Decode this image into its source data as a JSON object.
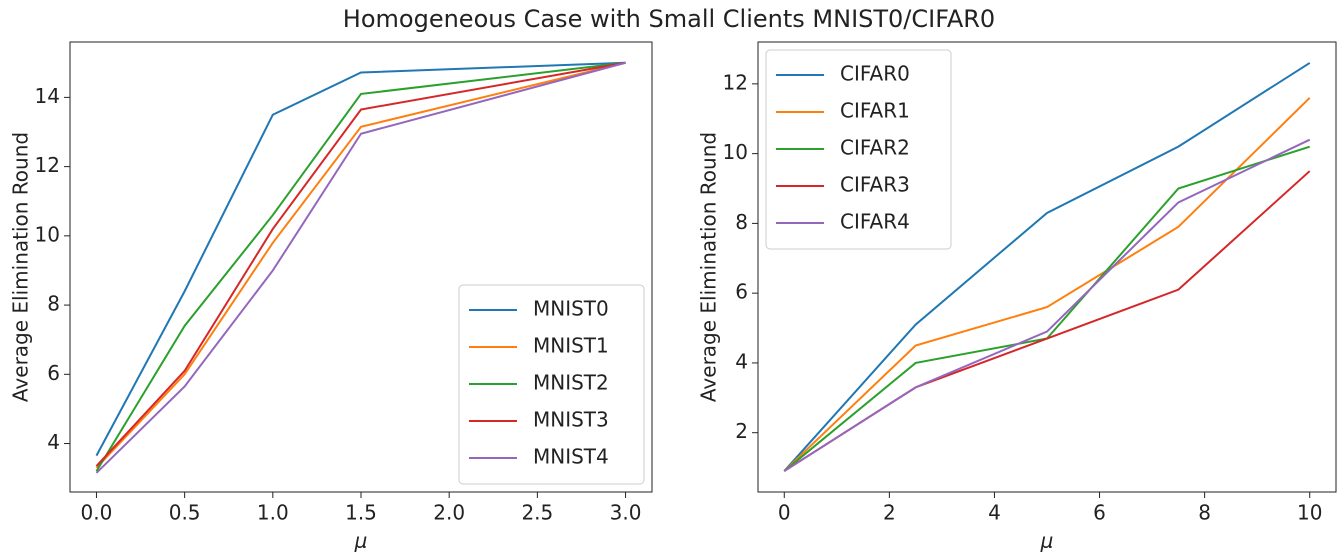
{
  "title": "Homogeneous Case with Small Clients MNIST0/CIFAR0",
  "chart_data": [
    {
      "type": "line",
      "xlabel": "μ",
      "ylabel": "Average Elimination Round",
      "x": [
        0,
        0.5,
        1.0,
        1.5,
        3.0
      ],
      "xlim": [
        -0.15,
        3.15
      ],
      "ylim": [
        2.6,
        15.6
      ],
      "xticks": [
        {
          "value": 0,
          "label": "0.0"
        },
        0.5,
        {
          "value": 1,
          "label": "1.0"
        },
        1.5,
        {
          "value": 2,
          "label": "2.0"
        },
        2.5,
        {
          "value": 3,
          "label": "3.0"
        }
      ],
      "yticks": [
        4,
        6,
        8,
        10,
        12,
        14
      ],
      "legend": "lower right",
      "series": [
        {
          "name": "MNIST0",
          "color": "#1f77b4",
          "values": [
            3.65,
            8.4,
            13.5,
            14.72,
            15
          ]
        },
        {
          "name": "MNIST1",
          "color": "#ff7f0e",
          "values": [
            3.3,
            6.0,
            9.8,
            13.15,
            15
          ]
        },
        {
          "name": "MNIST2",
          "color": "#2ca02c",
          "values": [
            3.2,
            7.4,
            10.6,
            14.1,
            15
          ]
        },
        {
          "name": "MNIST3",
          "color": "#d62728",
          "values": [
            3.35,
            6.1,
            10.2,
            13.65,
            15
          ]
        },
        {
          "name": "MNIST4",
          "color": "#9467bd",
          "values": [
            3.15,
            5.65,
            9.0,
            12.95,
            15
          ]
        }
      ]
    },
    {
      "type": "line",
      "xlabel": "μ",
      "ylabel": "Average Elimination Round",
      "x": [
        0,
        2.5,
        5,
        7.5,
        10
      ],
      "xlim": [
        -0.5,
        10.5
      ],
      "ylim": [
        0.3,
        13.2
      ],
      "xticks": [
        0,
        2,
        4,
        6,
        8,
        10
      ],
      "yticks": [
        2,
        4,
        6,
        8,
        10,
        12
      ],
      "legend": "upper left",
      "series": [
        {
          "name": "CIFAR0",
          "color": "#1f77b4",
          "values": [
            0.9,
            5.1,
            8.3,
            10.2,
            12.6
          ]
        },
        {
          "name": "CIFAR1",
          "color": "#ff7f0e",
          "values": [
            0.9,
            4.5,
            5.6,
            7.9,
            11.6
          ]
        },
        {
          "name": "CIFAR2",
          "color": "#2ca02c",
          "values": [
            0.9,
            4.0,
            4.7,
            9.0,
            10.2
          ]
        },
        {
          "name": "CIFAR3",
          "color": "#d62728",
          "values": [
            0.9,
            3.3,
            4.7,
            6.1,
            9.5
          ]
        },
        {
          "name": "CIFAR4",
          "color": "#9467bd",
          "values": [
            0.9,
            3.3,
            4.9,
            8.6,
            10.4
          ]
        }
      ]
    }
  ]
}
